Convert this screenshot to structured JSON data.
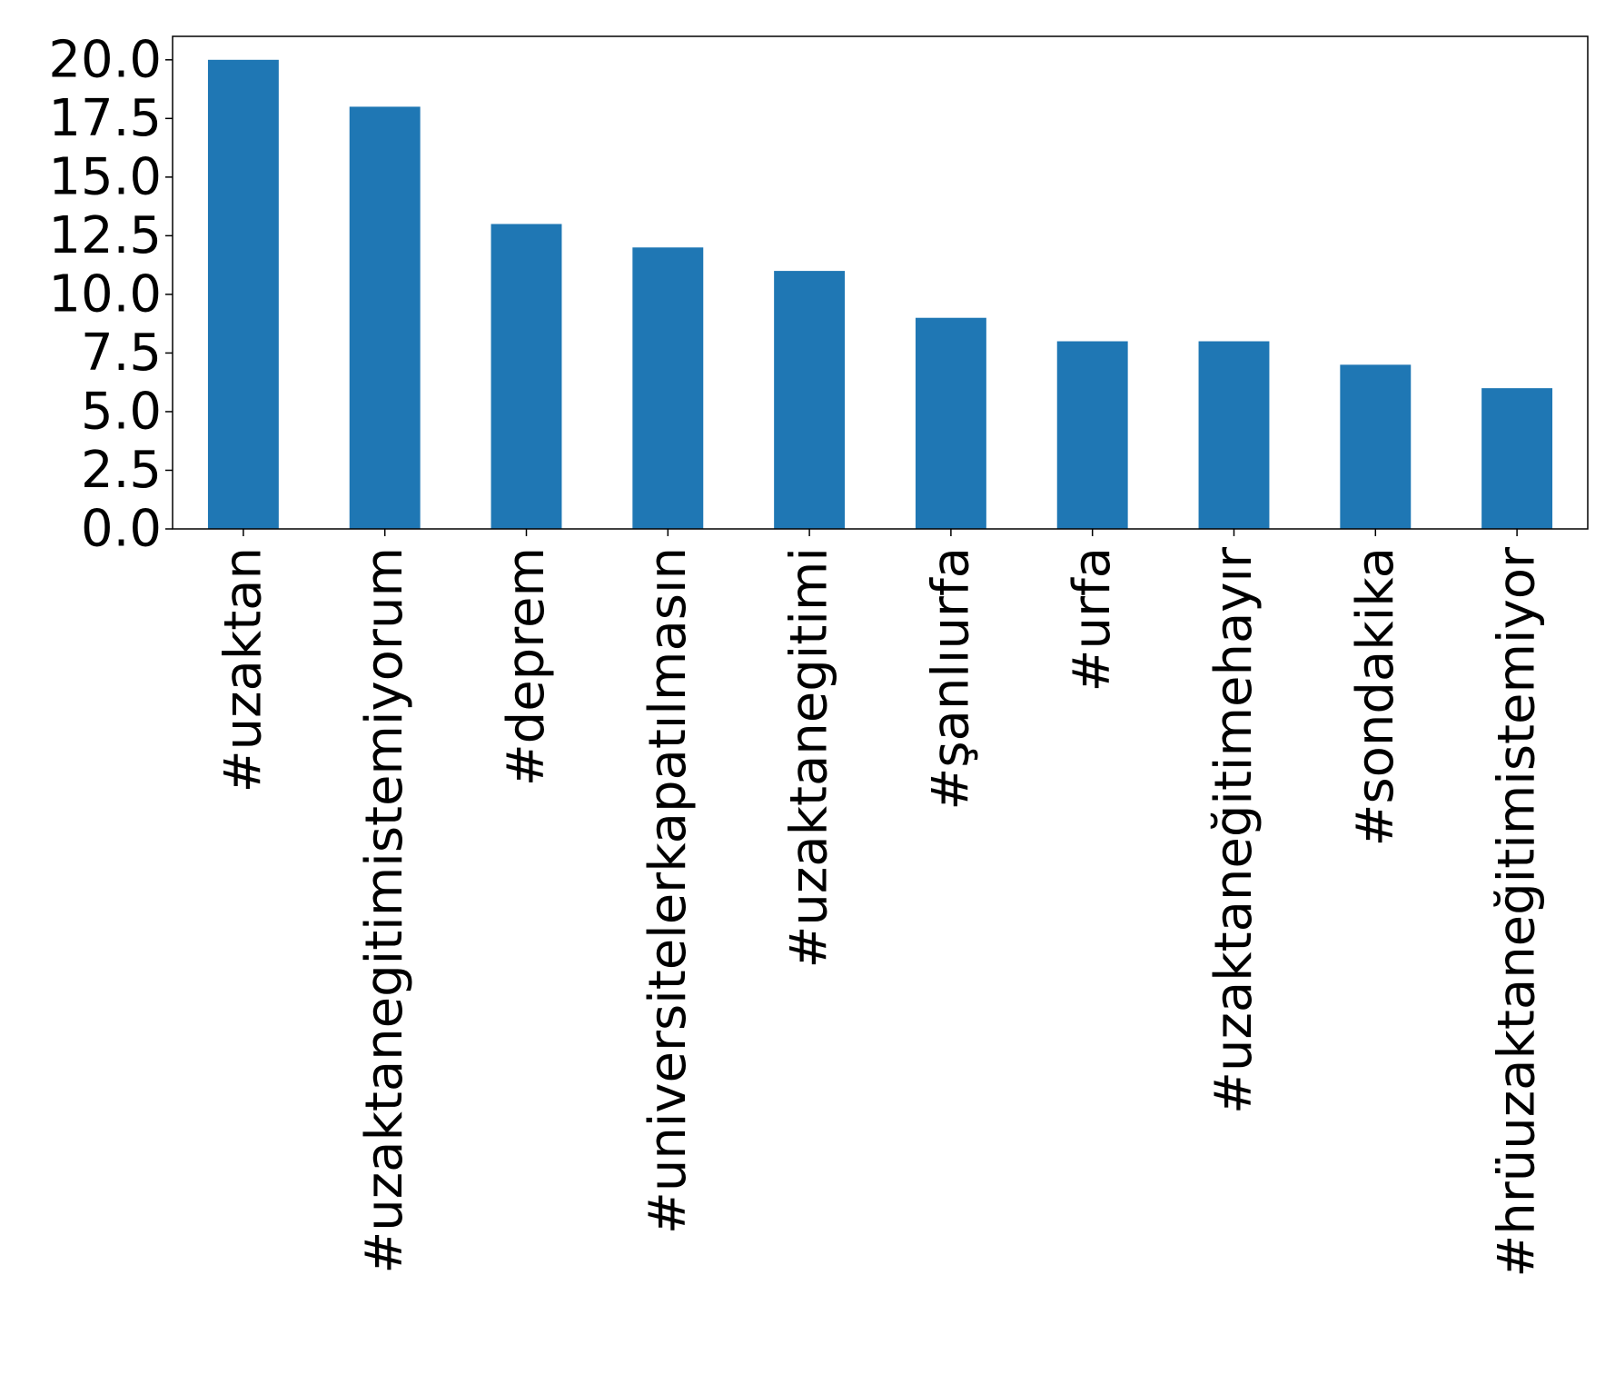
{
  "chart_data": {
    "type": "bar",
    "title": "",
    "xlabel": "",
    "ylabel": "",
    "categories": [
      "#uzaktan",
      "#uzaktanegitimistemiyorum",
      "#deprem",
      "#universitelerkapatılmasın",
      "#uzaktanegitimi",
      "#şanlıurfa",
      "#urfa",
      "#uzaktaneğitimehayır",
      "#sondakika",
      "#hrüuzaktaneğitimistemiyor"
    ],
    "values": [
      20,
      18,
      13,
      12,
      11,
      9,
      8,
      8,
      7,
      6
    ],
    "ylim": [
      0,
      21
    ],
    "yticks": [
      "0.0",
      "2.5",
      "5.0",
      "7.5",
      "10.0",
      "12.5",
      "15.0",
      "17.5",
      "20.0"
    ],
    "ytick_values": [
      0,
      2.5,
      5,
      7.5,
      10,
      12.5,
      15,
      17.5,
      20
    ],
    "grid": false,
    "legend": "none",
    "bar_color": "#1f77b4"
  }
}
